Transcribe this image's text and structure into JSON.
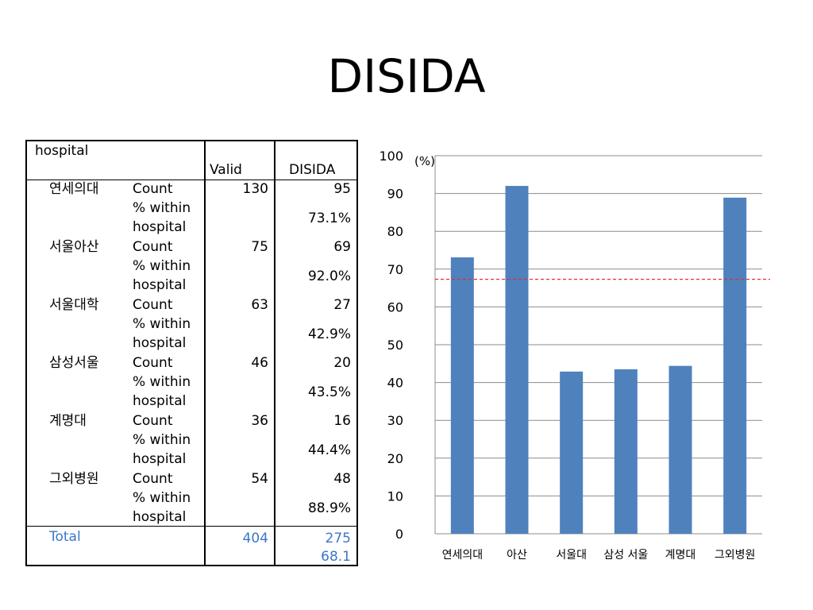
{
  "title": "DISIDA",
  "table": {
    "header_hospital": "hospital",
    "header_valid": "Valid",
    "header_disida": "DISIDA",
    "rows": [
      {
        "name": "연세의대",
        "count_label": "Count",
        "pct_label_1": "% within",
        "pct_label_2": "hospital",
        "valid": "130",
        "disida": "95",
        "pct": "73.1%"
      },
      {
        "name": "서울아산",
        "count_label": "Count",
        "pct_label_1": "% within",
        "pct_label_2": "hospital",
        "valid": "75",
        "disida": "69",
        "pct": "92.0%"
      },
      {
        "name": "서울대학",
        "count_label": "Count",
        "pct_label_1": "% within",
        "pct_label_2": "hospital",
        "valid": "63",
        "disida": "27",
        "pct": "42.9%"
      },
      {
        "name": "삼성서울",
        "count_label": "Count",
        "pct_label_1": "% within",
        "pct_label_2": "hospital",
        "valid": "46",
        "disida": "20",
        "pct": "43.5%"
      },
      {
        "name": "계명대",
        "count_label": "Count",
        "pct_label_1": "% within",
        "pct_label_2": "hospital",
        "valid": "36",
        "disida": "16",
        "pct": "44.4%"
      },
      {
        "name": "그외병원",
        "count_label": "Count",
        "pct_label_1": "% within",
        "pct_label_2": "hospital",
        "valid": "54",
        "disida": "48",
        "pct": "88.9%"
      }
    ],
    "total": {
      "label": "Total",
      "valid": "404",
      "disida": "275",
      "pct": "68.1"
    }
  },
  "chart_data": {
    "type": "bar",
    "unit_label": "(%)",
    "categories": [
      "연세의대",
      "아산",
      "서울대",
      "삼성 서울",
      "계명대",
      "그외병원"
    ],
    "values": [
      73.1,
      92.0,
      42.9,
      43.5,
      44.4,
      88.9
    ],
    "ylim": [
      0,
      100
    ],
    "yticks": [
      0,
      10,
      20,
      30,
      40,
      50,
      60,
      70,
      80,
      90,
      100
    ],
    "grid": true,
    "reference_line": 67.3,
    "bar_color": "#4f81bd",
    "reference_color": "#e03030"
  }
}
